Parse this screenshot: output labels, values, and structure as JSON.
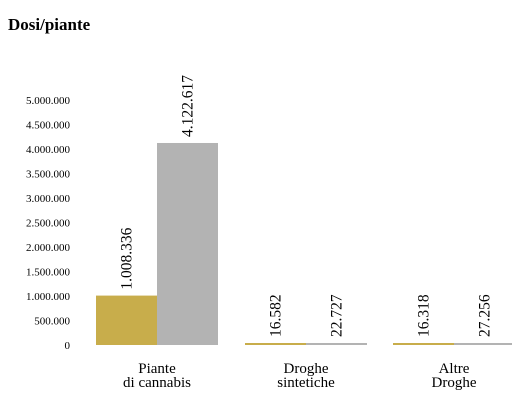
{
  "chart_data": {
    "type": "bar",
    "title": "Dosi/piante",
    "categories": [
      [
        "Piante",
        "di cannabis"
      ],
      [
        "Droghe",
        "sintetiche"
      ],
      [
        "Altre",
        "Droghe"
      ]
    ],
    "series": [
      {
        "color": "#c8ad4b",
        "values": [
          1008336,
          16582,
          16318
        ]
      },
      {
        "color": "#b3b3b3",
        "values": [
          4122617,
          22727,
          27256
        ]
      }
    ],
    "data_labels": [
      [
        "1.008.336",
        "16.582",
        "16.318"
      ],
      [
        "4.122.617",
        "22.727",
        "27.256"
      ]
    ],
    "ylim": [
      0,
      5000000
    ],
    "yticks": [
      0,
      500000,
      1000000,
      1500000,
      2000000,
      2500000,
      3000000,
      3500000,
      4000000,
      4500000,
      5000000
    ],
    "ytick_labels": [
      "0",
      "500.000",
      "1.000.000",
      "1.500.000",
      "2.000.000",
      "2.500.000",
      "3.000.000",
      "3.500.000",
      "4.000.000",
      "4.500.000",
      "5.000.000"
    ],
    "grid": false,
    "legend": "none"
  }
}
